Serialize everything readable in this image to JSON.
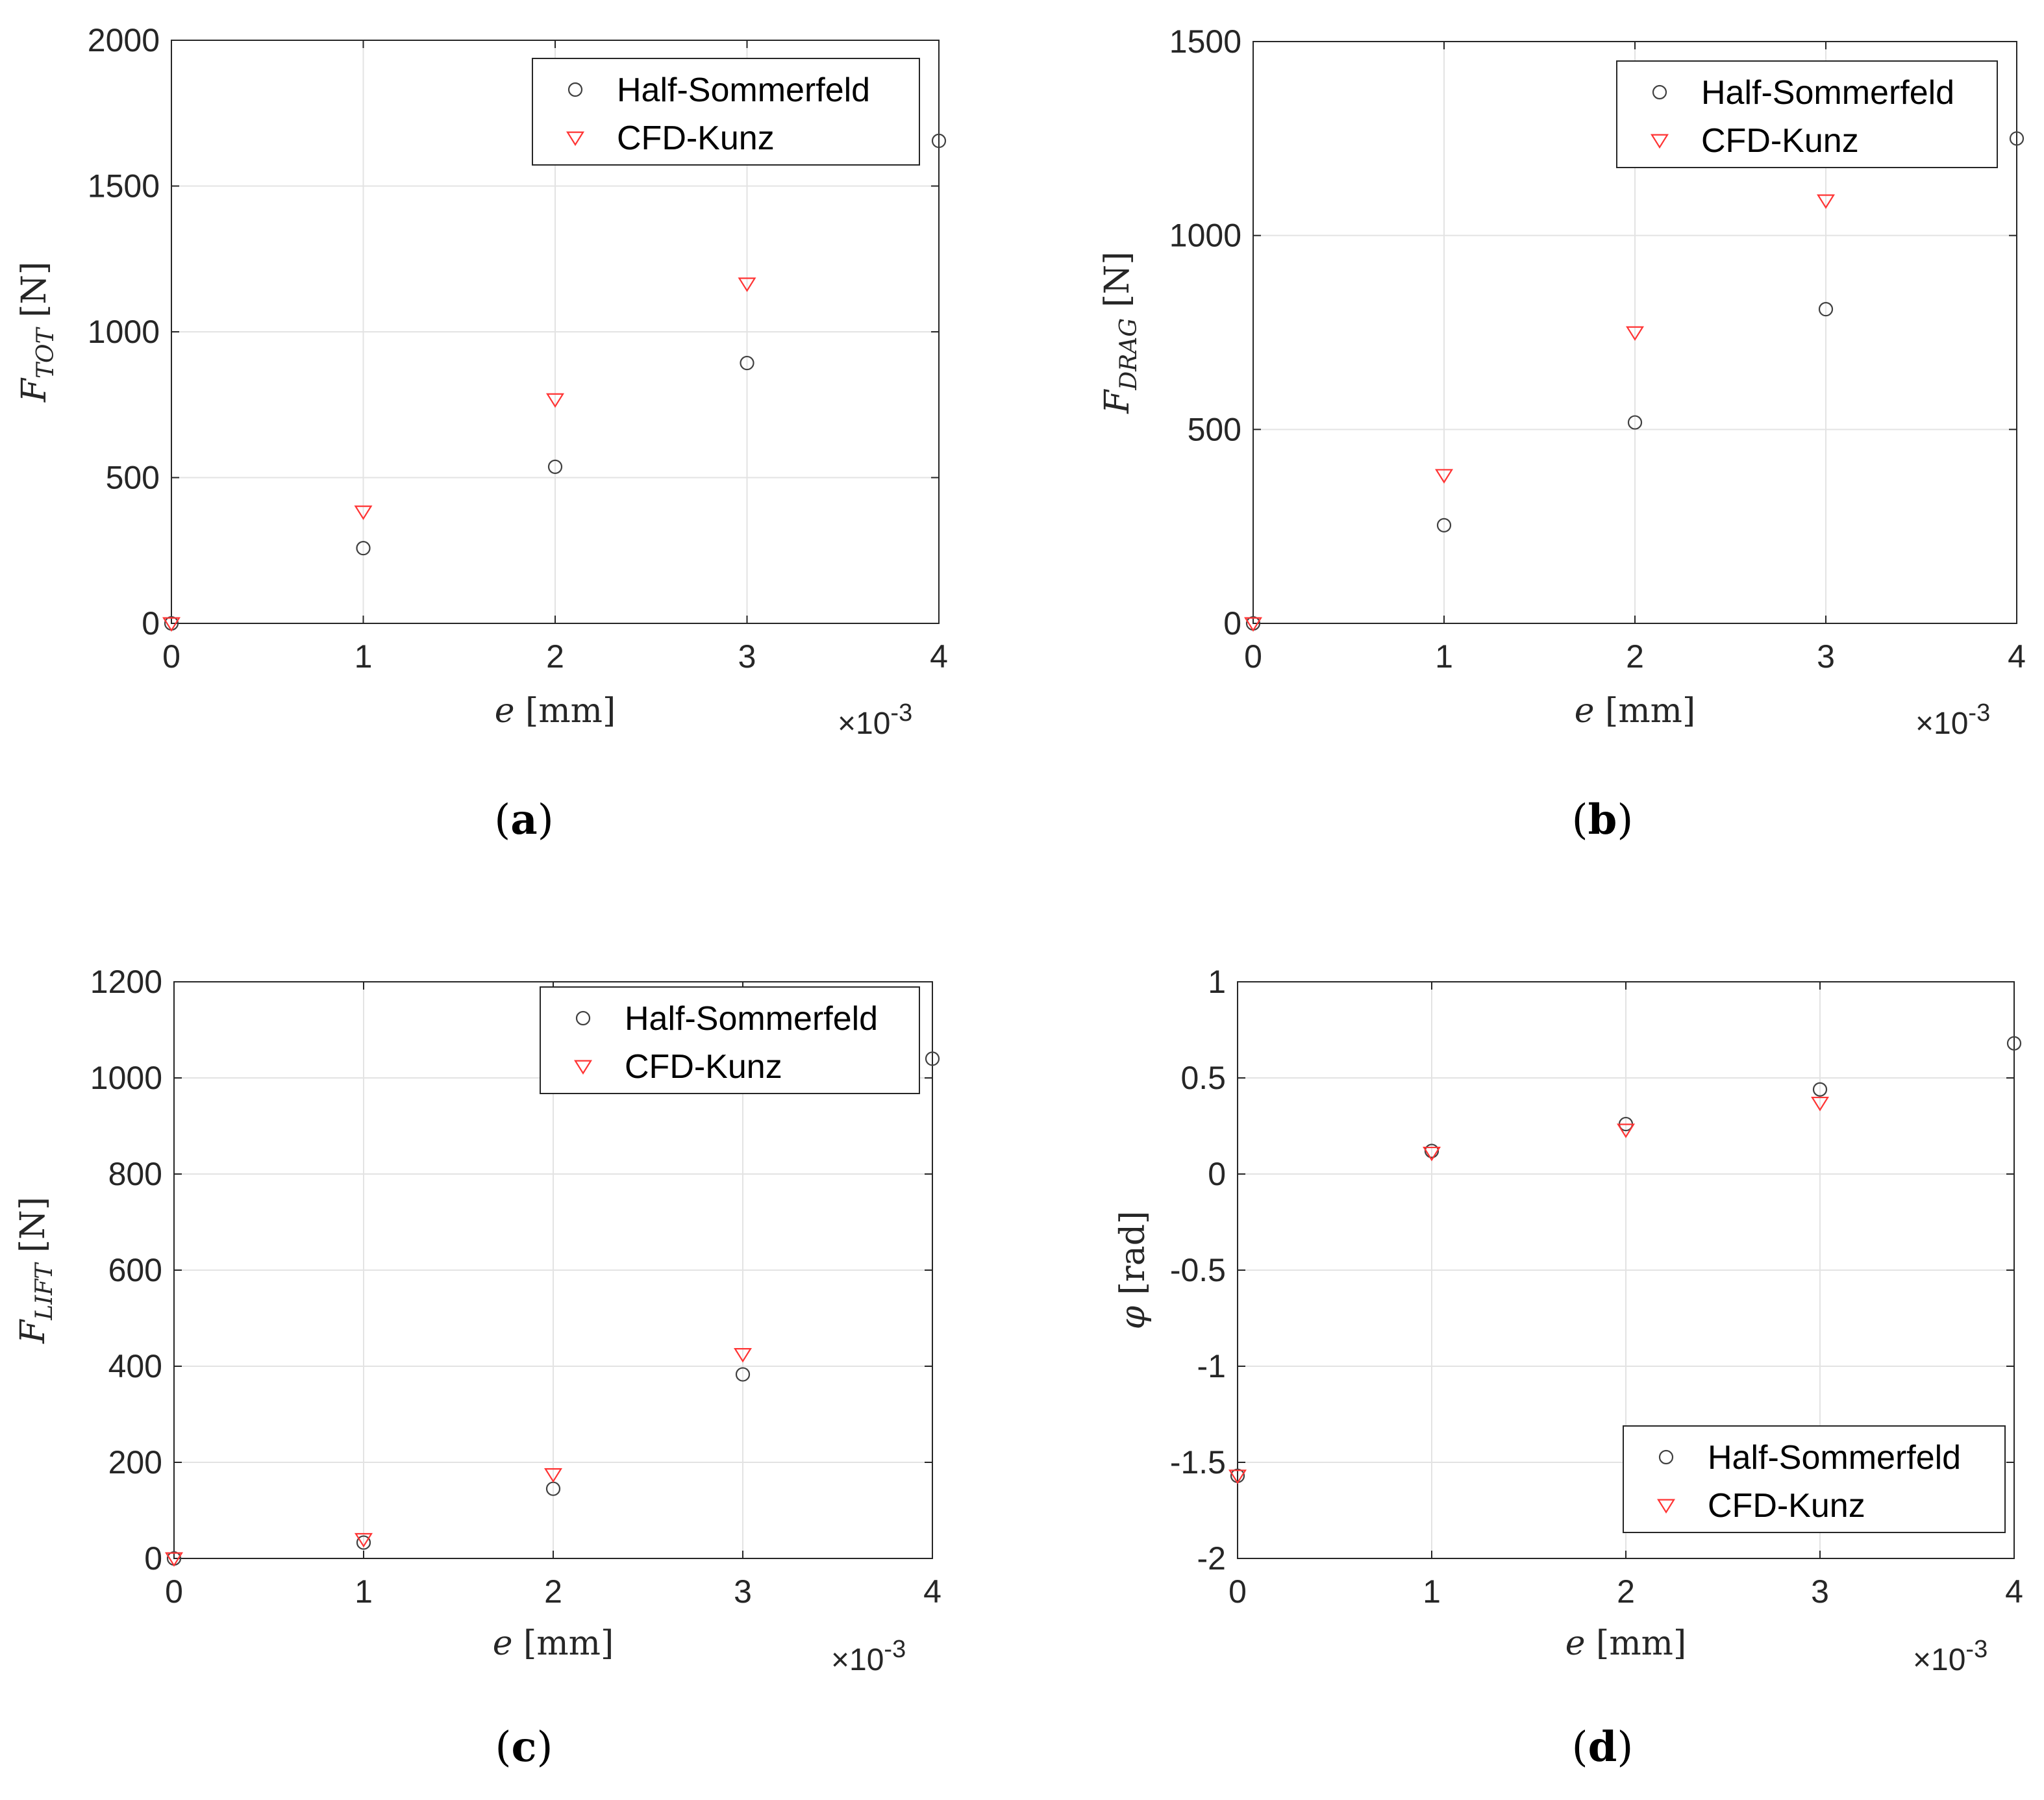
{
  "figure": {
    "series_styles": {
      "Half-Sommerfeld": {
        "marker": "circle",
        "color": "#404040"
      },
      "CFD-Kunz": {
        "marker": "triangle-down",
        "color": "#ff3333"
      }
    },
    "axis_color": "#262626",
    "grid_color": "#e3e3e3"
  },
  "chart_data": [
    {
      "id": "a",
      "caption": "a",
      "type": "scatter",
      "xlabel": "e [mm]",
      "xlabel_main": "e ",
      "xlabel_unit": "[mm]",
      "ylabel_main": "F",
      "ylabel_sub": "TOT",
      "ylabel_unit": "[N]",
      "x_exponent_prefix": "×10",
      "x_exponent": "-3",
      "xlim": [
        0,
        4
      ],
      "ylim": [
        0,
        2000
      ],
      "xticks": [
        0,
        1,
        2,
        3,
        4
      ],
      "xtick_labels": [
        "0",
        "1",
        "2",
        "3",
        "4"
      ],
      "yticks": [
        0,
        500,
        1000,
        1500,
        2000
      ],
      "ytick_labels": [
        "0",
        "500",
        "1000",
        "1500",
        "2000"
      ],
      "grid": true,
      "legend_position": "top-right",
      "series": [
        {
          "name": "Half-Sommerfeld",
          "x": [
            0,
            1,
            2,
            3,
            4
          ],
          "y": [
            0,
            258,
            537,
            893,
            1655
          ]
        },
        {
          "name": "CFD-Kunz",
          "x": [
            0,
            1,
            2,
            3
          ],
          "y": [
            0,
            383,
            768,
            1165
          ]
        }
      ]
    },
    {
      "id": "b",
      "caption": "b",
      "type": "scatter",
      "xlabel": "e [mm]",
      "xlabel_main": "e ",
      "xlabel_unit": "[mm]",
      "ylabel_main": "F",
      "ylabel_sub": "DRAG",
      "ylabel_unit": "[N]",
      "x_exponent_prefix": "×10",
      "x_exponent": "-3",
      "xlim": [
        0,
        4
      ],
      "ylim": [
        0,
        1500
      ],
      "xticks": [
        0,
        1,
        2,
        3,
        4
      ],
      "xtick_labels": [
        "0",
        "1",
        "2",
        "3",
        "4"
      ],
      "yticks": [
        0,
        500,
        1000,
        1500
      ],
      "ytick_labels": [
        "0",
        "500",
        "1000",
        "1500"
      ],
      "grid": true,
      "legend_position": "top-right",
      "series": [
        {
          "name": "Half-Sommerfeld",
          "x": [
            0,
            1,
            2,
            3,
            4
          ],
          "y": [
            0,
            253,
            518,
            810,
            1250
          ]
        },
        {
          "name": "CFD-Kunz",
          "x": [
            0,
            1,
            2,
            3
          ],
          "y": [
            0,
            382,
            750,
            1090
          ]
        }
      ]
    },
    {
      "id": "c",
      "caption": "c",
      "type": "scatter",
      "xlabel": "e [mm]",
      "xlabel_main": "e ",
      "xlabel_unit": "[mm]",
      "ylabel_main": "F",
      "ylabel_sub": "LIFT",
      "ylabel_unit": "[N]",
      "x_exponent_prefix": "×10",
      "x_exponent": "-3",
      "xlim": [
        0,
        4
      ],
      "ylim": [
        0,
        1200
      ],
      "xticks": [
        0,
        1,
        2,
        3,
        4
      ],
      "xtick_labels": [
        "0",
        "1",
        "2",
        "3",
        "4"
      ],
      "yticks": [
        0,
        200,
        400,
        600,
        800,
        1000,
        1200
      ],
      "ytick_labels": [
        "0",
        "200",
        "400",
        "600",
        "800",
        "1000",
        "1200"
      ],
      "grid": true,
      "legend_position": "top-right",
      "series": [
        {
          "name": "Half-Sommerfeld",
          "x": [
            0,
            1,
            2,
            3,
            4
          ],
          "y": [
            0,
            33,
            145,
            383,
            1040
          ]
        },
        {
          "name": "CFD-Kunz",
          "x": [
            0,
            1,
            2,
            3
          ],
          "y": [
            0,
            40,
            175,
            425
          ]
        }
      ]
    },
    {
      "id": "d",
      "caption": "d",
      "type": "scatter",
      "xlabel": "e [mm]",
      "xlabel_main": "e ",
      "xlabel_unit": "[mm]",
      "ylabel_main": "φ",
      "ylabel_sub": "",
      "ylabel_unit": "[rad]",
      "x_exponent_prefix": "×10",
      "x_exponent": "-3",
      "xlim": [
        0,
        4
      ],
      "ylim": [
        -2,
        1
      ],
      "xticks": [
        0,
        1,
        2,
        3,
        4
      ],
      "xtick_labels": [
        "0",
        "1",
        "2",
        "3",
        "4"
      ],
      "yticks": [
        -2,
        -1.5,
        -1,
        -0.5,
        0,
        0.5,
        1
      ],
      "ytick_labels": [
        "-2",
        "-1.5",
        "-1",
        "-0.5",
        "0",
        "0.5",
        "1"
      ],
      "grid": true,
      "legend_position": "bottom-right",
      "series": [
        {
          "name": "Half-Sommerfeld",
          "x": [
            0,
            1,
            2,
            3,
            4
          ],
          "y": [
            -1.57,
            0.12,
            0.26,
            0.44,
            0.68
          ]
        },
        {
          "name": "CFD-Kunz",
          "x": [
            0,
            1,
            2,
            3
          ],
          "y": [
            -1.57,
            0.11,
            0.23,
            0.37
          ]
        }
      ]
    }
  ]
}
